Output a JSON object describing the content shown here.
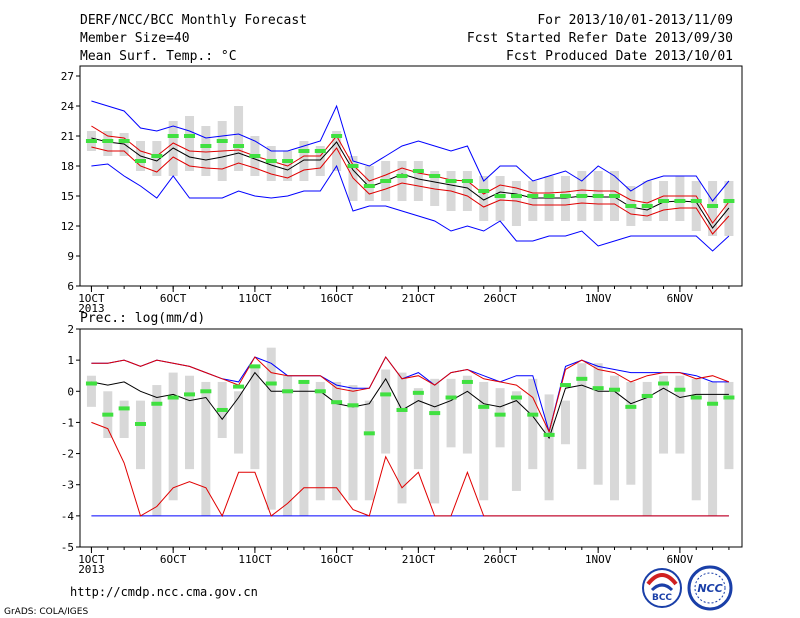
{
  "header": {
    "title": "DERF/NCC/BCC Monthly Forecast",
    "member": "Member Size=40",
    "variable": "Mean Surf. Temp.: °C",
    "period": "For 2013/10/01-2013/11/09",
    "start": "Fcst Started Refer Date 2013/09/30",
    "produced": "Fcst Produced Date 2013/10/01"
  },
  "footer": {
    "url": "http://cmdp.ncc.cma.gov.cn",
    "credit": "GrADS: COLA/IGES",
    "logo1": "BCC",
    "logo2": "NCC"
  },
  "colors": {
    "box": "#d8d8d8",
    "median": "#40e040",
    "mean": "#000000",
    "spread": "#e00000",
    "extreme": "#0000ff"
  },
  "chart_data": [
    {
      "type": "box",
      "title": "Mean Surf. Temp.: °C",
      "x": [
        1,
        2,
        3,
        4,
        5,
        6,
        7,
        8,
        9,
        10,
        11,
        12,
        13,
        14,
        15,
        16,
        17,
        18,
        19,
        20,
        21,
        22,
        23,
        24,
        25,
        26,
        27,
        28,
        29,
        30,
        31,
        32,
        33,
        34,
        35,
        36,
        37,
        38,
        39,
        40
      ],
      "xticks": [
        {
          "x": 1,
          "label": "1OCT"
        },
        {
          "x": 6,
          "label": "6OCT"
        },
        {
          "x": 11,
          "label": "11OCT"
        },
        {
          "x": 16,
          "label": "16OCT"
        },
        {
          "x": 21,
          "label": "21OCT"
        },
        {
          "x": 26,
          "label": "26OCT"
        },
        {
          "x": 32,
          "label": "1NOV"
        },
        {
          "x": 37,
          "label": "6NOV"
        }
      ],
      "xsub": "2013",
      "xlim": [
        0.3,
        40.8
      ],
      "ylim": [
        6,
        28
      ],
      "yticks": [
        6,
        9,
        12,
        15,
        18,
        21,
        24,
        27
      ],
      "series": [
        {
          "name": "box_top",
          "values": [
            21.5,
            21.5,
            21.3,
            20.5,
            20.5,
            22.5,
            23.0,
            22.0,
            22.5,
            24.0,
            21.0,
            20.0,
            19.5,
            20.5,
            20.0,
            21.5,
            19.0,
            18.0,
            18.5,
            18.5,
            18.5,
            17.5,
            17.5,
            17.5,
            17.0,
            17.0,
            16.5,
            16.5,
            17.0,
            17.0,
            17.5,
            17.5,
            17.5,
            16.0,
            16.5,
            16.5,
            17.0,
            16.5,
            16.5,
            16.5
          ]
        },
        {
          "name": "box_bottom",
          "values": [
            19.5,
            19.0,
            19.0,
            17.5,
            17.0,
            17.0,
            17.5,
            17.0,
            16.5,
            17.5,
            17.0,
            16.5,
            16.5,
            16.5,
            17.0,
            17.5,
            14.5,
            14.5,
            14.5,
            14.5,
            14.5,
            14.0,
            13.5,
            13.5,
            12.5,
            12.5,
            12.0,
            12.5,
            12.5,
            12.5,
            12.5,
            12.5,
            12.5,
            12.0,
            12.5,
            12.5,
            12.5,
            11.5,
            11.0,
            11.0
          ]
        },
        {
          "name": "median",
          "values": [
            20.5,
            20.5,
            20.5,
            18.5,
            19.0,
            21.0,
            21.0,
            20.0,
            20.5,
            20.0,
            19.0,
            18.5,
            18.5,
            19.5,
            19.5,
            21.0,
            18.0,
            16.0,
            16.5,
            17.0,
            17.5,
            17.0,
            16.5,
            16.5,
            15.5,
            15.0,
            15.0,
            15.0,
            15.0,
            15.0,
            15.0,
            15.0,
            15.0,
            14.0,
            14.0,
            14.5,
            14.5,
            14.5,
            14.0,
            14.5
          ]
        },
        {
          "name": "mean",
          "values": [
            20.8,
            20.4,
            20.2,
            19.0,
            18.5,
            19.8,
            18.9,
            18.6,
            18.9,
            19.3,
            18.7,
            18.1,
            17.6,
            18.6,
            18.6,
            20.4,
            17.6,
            15.9,
            16.5,
            17.2,
            16.7,
            16.4,
            16.1,
            15.8,
            14.6,
            15.4,
            15.2,
            14.8,
            14.8,
            14.8,
            15.0,
            14.9,
            14.9,
            13.9,
            13.6,
            14.4,
            14.5,
            14.4,
            11.8,
            13.8
          ]
        },
        {
          "name": "upper",
          "values": [
            22.0,
            21.0,
            20.8,
            19.5,
            19.0,
            20.3,
            19.5,
            19.4,
            19.5,
            19.6,
            19.0,
            18.5,
            18.0,
            19.0,
            19.0,
            21.0,
            18.1,
            16.5,
            17.1,
            17.8,
            17.3,
            17.0,
            16.6,
            16.5,
            15.2,
            16.1,
            15.8,
            15.3,
            15.3,
            15.4,
            15.6,
            15.5,
            15.5,
            14.6,
            14.3,
            15.0,
            15.0,
            15.0,
            12.3,
            14.4
          ]
        },
        {
          "name": "lower",
          "values": [
            19.9,
            19.5,
            19.5,
            18.0,
            17.4,
            18.9,
            18.0,
            17.8,
            17.7,
            18.3,
            17.8,
            17.2,
            16.8,
            17.6,
            17.8,
            19.8,
            16.8,
            15.2,
            15.7,
            16.3,
            16.0,
            15.7,
            15.5,
            15.0,
            13.9,
            14.6,
            14.5,
            14.1,
            14.1,
            14.1,
            14.3,
            14.2,
            14.2,
            13.2,
            13.0,
            13.6,
            13.8,
            13.8,
            11.2,
            13.0
          ]
        },
        {
          "name": "max",
          "values": [
            24.5,
            24.0,
            23.5,
            21.8,
            21.5,
            22.0,
            21.5,
            20.8,
            21.0,
            21.2,
            20.5,
            19.5,
            19.5,
            20.0,
            20.5,
            24.0,
            18.5,
            18.0,
            19.0,
            20.0,
            20.5,
            20.0,
            19.5,
            20.0,
            16.5,
            18.0,
            18.0,
            16.5,
            17.0,
            17.5,
            16.5,
            18.0,
            17.0,
            15.5,
            16.5,
            17.0,
            17.0,
            17.0,
            14.5,
            16.5
          ]
        },
        {
          "name": "min",
          "values": [
            18.0,
            18.2,
            17.0,
            16.0,
            14.8,
            17.0,
            14.8,
            14.8,
            14.8,
            15.5,
            15.0,
            14.8,
            15.0,
            15.5,
            15.5,
            18.0,
            13.5,
            14.0,
            14.0,
            13.5,
            13.0,
            12.5,
            11.5,
            12.0,
            11.5,
            12.5,
            10.5,
            10.5,
            11.0,
            11.0,
            11.5,
            10.0,
            10.5,
            11.0,
            11.0,
            11.0,
            11.0,
            11.0,
            9.5,
            11.0
          ]
        }
      ]
    },
    {
      "type": "box",
      "title": "Prec.: log(mm/d)",
      "x": [
        1,
        2,
        3,
        4,
        5,
        6,
        7,
        8,
        9,
        10,
        11,
        12,
        13,
        14,
        15,
        16,
        17,
        18,
        19,
        20,
        21,
        22,
        23,
        24,
        25,
        26,
        27,
        28,
        29,
        30,
        31,
        32,
        33,
        34,
        35,
        36,
        37,
        38,
        39,
        40
      ],
      "xticks": [
        {
          "x": 1,
          "label": "1OCT"
        },
        {
          "x": 6,
          "label": "6OCT"
        },
        {
          "x": 11,
          "label": "11OCT"
        },
        {
          "x": 16,
          "label": "16OCT"
        },
        {
          "x": 21,
          "label": "21OCT"
        },
        {
          "x": 26,
          "label": "26OCT"
        },
        {
          "x": 32,
          "label": "1NOV"
        },
        {
          "x": 37,
          "label": "6NOV"
        }
      ],
      "xsub": "2013",
      "xlim": [
        0.3,
        40.8
      ],
      "ylim": [
        -5,
        2
      ],
      "yticks": [
        -5,
        -4,
        -3,
        -2,
        -1,
        0,
        1,
        2
      ],
      "series": [
        {
          "name": "box_top",
          "values": [
            0.5,
            0.0,
            -0.3,
            -0.3,
            0.2,
            0.6,
            0.5,
            0.3,
            0.3,
            0.0,
            0.8,
            1.4,
            0.5,
            0.3,
            0.3,
            0.3,
            0.2,
            -0.3,
            0.7,
            0.6,
            0.1,
            0.4,
            0.4,
            0.5,
            0.3,
            0.1,
            0.0,
            0.4,
            -0.1,
            -0.3,
            0.9,
            0.9,
            0.5,
            0.3,
            0.3,
            0.5,
            0.5,
            0.4,
            0.3,
            0.3
          ]
        },
        {
          "name": "box_bottom",
          "values": [
            -0.5,
            -1.5,
            -1.5,
            -2.5,
            -4.0,
            -3.5,
            -2.5,
            -4.0,
            -1.5,
            -2.0,
            -2.5,
            -3.8,
            -4.0,
            -4.0,
            -3.5,
            -3.5,
            -3.5,
            -3.5,
            -2.0,
            -3.6,
            -2.5,
            -3.6,
            -1.8,
            -2.0,
            -3.5,
            -1.8,
            -3.2,
            -2.5,
            -3.5,
            -1.7,
            -2.5,
            -3.0,
            -3.5,
            -3.0,
            -4.0,
            -2.0,
            -2.0,
            -3.5,
            -4.0,
            -2.5
          ]
        },
        {
          "name": "median",
          "values": [
            0.25,
            -0.75,
            -0.55,
            -1.05,
            -0.4,
            -0.2,
            -0.1,
            0.0,
            -0.6,
            0.15,
            0.8,
            0.25,
            0.0,
            0.3,
            0.0,
            -0.35,
            -0.45,
            -1.35,
            -0.1,
            -0.6,
            -0.05,
            -0.7,
            -0.2,
            0.3,
            -0.5,
            -0.75,
            -0.2,
            -0.75,
            -1.4,
            0.2,
            0.4,
            0.1,
            0.05,
            -0.5,
            -0.15,
            0.25,
            0.05,
            -0.2,
            -0.4,
            -0.2
          ]
        },
        {
          "name": "mean",
          "values": [
            0.3,
            0.2,
            0.3,
            0.0,
            -0.2,
            -0.1,
            -0.3,
            -0.2,
            -0.9,
            -0.2,
            0.6,
            0.0,
            0.0,
            0.0,
            0.0,
            -0.4,
            -0.5,
            -0.4,
            0.4,
            -0.6,
            -0.3,
            -0.5,
            -0.3,
            0.0,
            -0.4,
            -0.5,
            -0.3,
            -0.8,
            -1.5,
            0.1,
            0.2,
            0.0,
            0.0,
            -0.4,
            -0.2,
            0.1,
            -0.2,
            -0.1,
            -0.1,
            -0.1
          ]
        },
        {
          "name": "upper",
          "values": [
            0.9,
            0.9,
            1.0,
            0.8,
            1.0,
            0.9,
            0.8,
            0.6,
            0.4,
            0.2,
            1.1,
            0.6,
            0.5,
            0.5,
            0.5,
            0.1,
            0.0,
            0.1,
            1.1,
            0.4,
            0.5,
            0.2,
            0.6,
            0.7,
            0.4,
            0.3,
            0.2,
            -0.2,
            -1.3,
            0.7,
            1.0,
            0.7,
            0.6,
            0.3,
            0.5,
            0.6,
            0.6,
            0.4,
            0.5,
            0.3
          ]
        },
        {
          "name": "lower",
          "values": [
            -1.0,
            -1.2,
            -2.3,
            -4.0,
            -3.7,
            -3.1,
            -2.9,
            -3.1,
            -4.0,
            -2.6,
            -2.6,
            -4.0,
            -3.6,
            -3.1,
            -3.1,
            -3.1,
            -3.8,
            -4.0,
            -2.1,
            -3.1,
            -2.6,
            -4.0,
            -4.0,
            -2.6,
            -4.0,
            -4.0,
            -4.0,
            -4.0,
            -4.0,
            -4.0,
            -4.0,
            -4.0,
            -4.0,
            -4.0,
            -4.0,
            -4.0,
            -4.0,
            -4.0,
            -4.0,
            -4.0
          ]
        },
        {
          "name": "max",
          "values": [
            0.9,
            0.9,
            1.0,
            0.8,
            1.0,
            0.9,
            0.8,
            0.6,
            0.4,
            0.3,
            1.1,
            0.9,
            0.5,
            0.5,
            0.5,
            0.2,
            0.1,
            0.1,
            1.1,
            0.4,
            0.6,
            0.2,
            0.6,
            0.7,
            0.5,
            0.3,
            0.5,
            0.5,
            -1.3,
            0.8,
            1.0,
            0.8,
            0.7,
            0.6,
            0.6,
            0.6,
            0.6,
            0.5,
            0.3,
            0.3
          ]
        },
        {
          "name": "min",
          "values": [
            -4.0,
            -4.0,
            -4.0,
            -4.0,
            -4.0,
            -4.0,
            -4.0,
            -4.0,
            -4.0,
            -4.0,
            -4.0,
            -4.0,
            -4.0,
            -4.0,
            -4.0,
            -4.0,
            -4.0,
            -4.0,
            -4.0,
            -4.0,
            -4.0,
            -4.0,
            -4.0,
            -4.0,
            -4.0,
            -4.0,
            -4.0,
            -4.0,
            -4.0,
            -4.0,
            -4.0,
            -4.0,
            -4.0,
            -4.0,
            -4.0,
            -4.0,
            -4.0,
            -4.0,
            -4.0,
            -4.0
          ]
        }
      ]
    }
  ]
}
